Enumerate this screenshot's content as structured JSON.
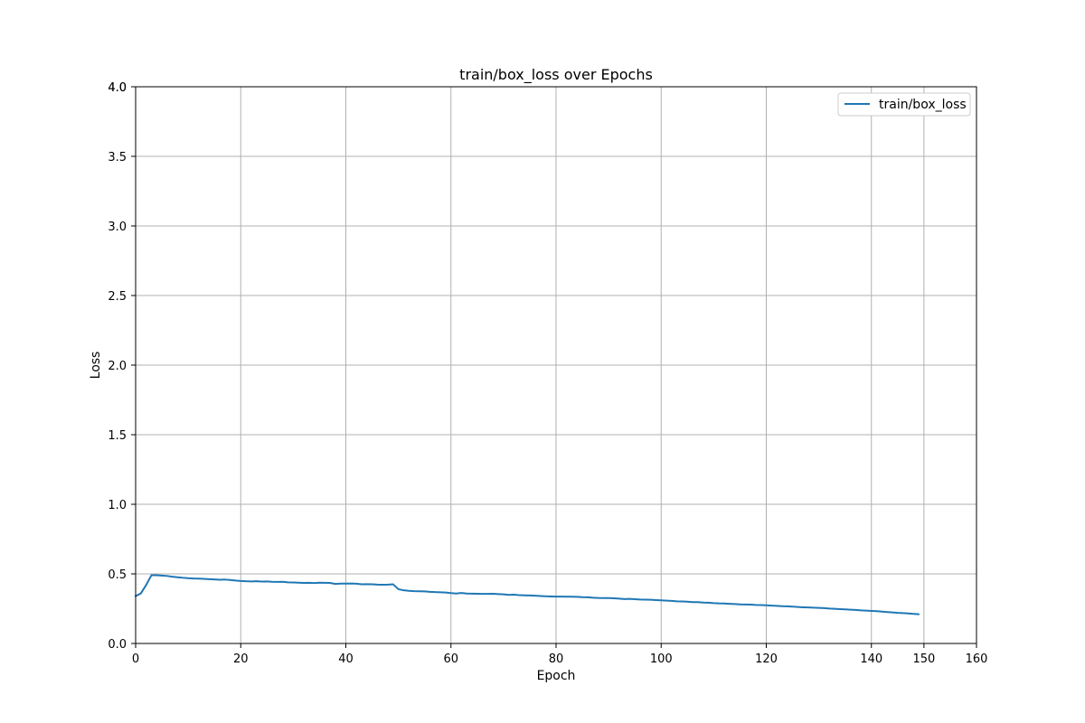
{
  "chart_data": {
    "type": "line",
    "title": "train/box_loss over Epochs",
    "xlabel": "Epoch",
    "ylabel": "Loss",
    "xlim": [
      0,
      160
    ],
    "ylim": [
      0,
      4.0
    ],
    "x_ticks": [
      0,
      20,
      40,
      60,
      80,
      100,
      120,
      140,
      150,
      160
    ],
    "y_ticks": [
      0.0,
      0.5,
      1.0,
      1.5,
      2.0,
      2.5,
      3.0,
      3.5,
      4.0
    ],
    "x_tick_labels": [
      "0",
      "20",
      "40",
      "60",
      "80",
      "100",
      "120",
      "140",
      "150",
      "160"
    ],
    "y_tick_labels": [
      "0.0",
      "0.5",
      "1.0",
      "1.5",
      "2.0",
      "2.5",
      "3.0",
      "3.5",
      "4.0"
    ],
    "extra_y_tick_labels": [
      {
        "value": 4.0,
        "label": "4.0"
      }
    ],
    "grid": true,
    "legend": {
      "position": "top-right"
    },
    "series": [
      {
        "name": "train/box_loss",
        "color": "#1f77b4",
        "x": [
          0,
          1,
          2,
          3,
          4,
          5,
          6,
          7,
          8,
          9,
          10,
          11,
          12,
          13,
          14,
          15,
          16,
          17,
          18,
          19,
          20,
          21,
          22,
          23,
          24,
          25,
          26,
          27,
          28,
          29,
          30,
          31,
          32,
          33,
          34,
          35,
          36,
          37,
          38,
          39,
          40,
          41,
          42,
          43,
          44,
          45,
          46,
          47,
          48,
          49,
          50,
          51,
          52,
          53,
          54,
          55,
          56,
          57,
          58,
          59,
          60,
          61,
          62,
          63,
          64,
          65,
          66,
          67,
          68,
          69,
          70,
          71,
          72,
          73,
          74,
          75,
          76,
          77,
          78,
          79,
          80,
          81,
          82,
          83,
          84,
          85,
          86,
          87,
          88,
          89,
          90,
          91,
          92,
          93,
          94,
          95,
          96,
          97,
          98,
          99,
          100,
          101,
          102,
          103,
          104,
          105,
          106,
          107,
          108,
          109,
          110,
          111,
          112,
          113,
          114,
          115,
          116,
          117,
          118,
          119,
          120,
          121,
          122,
          123,
          124,
          125,
          126,
          127,
          128,
          129,
          130,
          131,
          132,
          133,
          134,
          135,
          136,
          137,
          138,
          139,
          140,
          141,
          142,
          143,
          144,
          145,
          146,
          147,
          148,
          149
        ],
        "values": [
          0.34,
          0.36,
          0.42,
          0.49,
          0.49,
          0.488,
          0.485,
          0.48,
          0.476,
          0.472,
          0.469,
          0.467,
          0.466,
          0.464,
          0.462,
          0.46,
          0.458,
          0.459,
          0.456,
          0.452,
          0.449,
          0.447,
          0.446,
          0.447,
          0.445,
          0.446,
          0.443,
          0.442,
          0.443,
          0.439,
          0.438,
          0.437,
          0.435,
          0.436,
          0.434,
          0.437,
          0.436,
          0.435,
          0.428,
          0.43,
          0.43,
          0.431,
          0.429,
          0.425,
          0.426,
          0.425,
          0.423,
          0.422,
          0.423,
          0.425,
          0.39,
          0.382,
          0.378,
          0.376,
          0.375,
          0.374,
          0.371,
          0.369,
          0.368,
          0.366,
          0.362,
          0.359,
          0.363,
          0.359,
          0.358,
          0.357,
          0.356,
          0.356,
          0.357,
          0.355,
          0.353,
          0.349,
          0.351,
          0.347,
          0.346,
          0.345,
          0.343,
          0.341,
          0.339,
          0.338,
          0.337,
          0.337,
          0.336,
          0.336,
          0.335,
          0.333,
          0.332,
          0.329,
          0.327,
          0.326,
          0.326,
          0.325,
          0.322,
          0.319,
          0.321,
          0.318,
          0.316,
          0.315,
          0.314,
          0.312,
          0.31,
          0.308,
          0.306,
          0.303,
          0.302,
          0.3,
          0.297,
          0.297,
          0.294,
          0.293,
          0.29,
          0.288,
          0.287,
          0.285,
          0.283,
          0.281,
          0.28,
          0.279,
          0.277,
          0.276,
          0.274,
          0.272,
          0.27,
          0.268,
          0.267,
          0.265,
          0.262,
          0.26,
          0.259,
          0.257,
          0.256,
          0.254,
          0.251,
          0.249,
          0.247,
          0.245,
          0.243,
          0.241,
          0.238,
          0.236,
          0.234,
          0.232,
          0.229,
          0.226,
          0.223,
          0.22,
          0.218,
          0.216,
          0.213,
          0.21
        ]
      }
    ]
  }
}
